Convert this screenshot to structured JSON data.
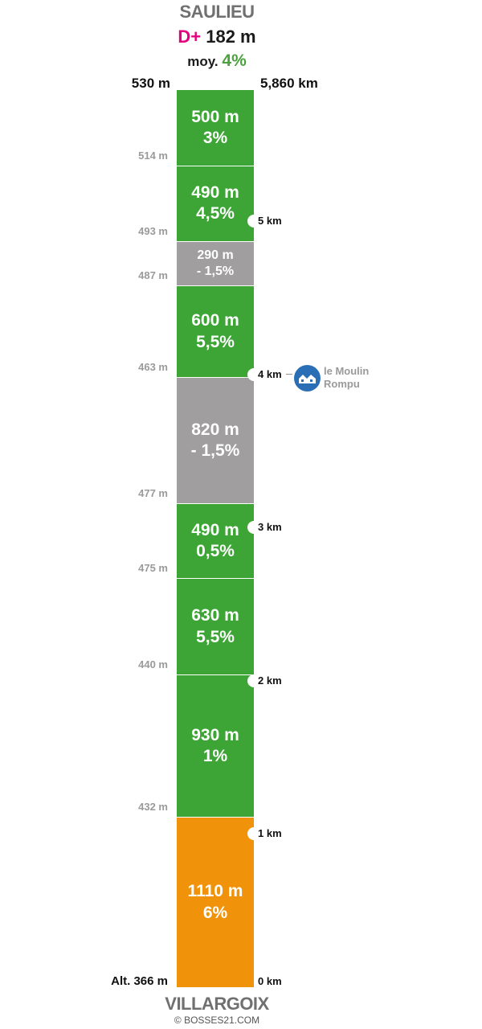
{
  "header": {
    "title": "SAULIEU",
    "dplus_prefix": "D+",
    "dplus_value": "182 m",
    "avg_prefix": "moy.",
    "avg_value": "4%",
    "top_altitude": "530 m",
    "top_distance": "5,860 km"
  },
  "footer": {
    "title": "VILLARGOIX",
    "credit": "© BOSSES21.COM",
    "bottom_altitude": "Alt. 366 m"
  },
  "colors": {
    "green": "#3da535",
    "grey": "#a09e9e",
    "orange": "#f0930b",
    "dplus": "#e5007d",
    "poi": "#2a6fb5"
  },
  "segments": [
    {
      "length": "500 m",
      "grade": "3%",
      "color": "green"
    },
    {
      "length": "490 m",
      "grade": "4,5%",
      "color": "green"
    },
    {
      "length": "290 m",
      "grade": "- 1,5%",
      "color": "grey"
    },
    {
      "length": "600 m",
      "grade": "5,5%",
      "color": "green"
    },
    {
      "length": "820 m",
      "grade": "- 1,5%",
      "color": "grey"
    },
    {
      "length": "490 m",
      "grade": "0,5%",
      "color": "green"
    },
    {
      "length": "630 m",
      "grade": "5,5%",
      "color": "green"
    },
    {
      "length": "930 m",
      "grade": "1%",
      "color": "green"
    },
    {
      "length": "1110 m",
      "grade": "6%",
      "color": "orange"
    }
  ],
  "altitudes": [
    "514 m",
    "493 m",
    "487 m",
    "463 m",
    "477 m",
    "475 m",
    "440 m",
    "432 m"
  ],
  "km_markers": [
    {
      "label": "5 km",
      "km": 5
    },
    {
      "label": "4 km",
      "km": 4
    },
    {
      "label": "3 km",
      "km": 3
    },
    {
      "label": "2 km",
      "km": 2
    },
    {
      "label": "1 km",
      "km": 1
    },
    {
      "label": "0 km",
      "km": 0
    }
  ],
  "total_km": 5.86,
  "poi": {
    "icon": "house-icon",
    "name_line1": "le Moulin",
    "name_line2": "Rompu",
    "km": 4
  }
}
